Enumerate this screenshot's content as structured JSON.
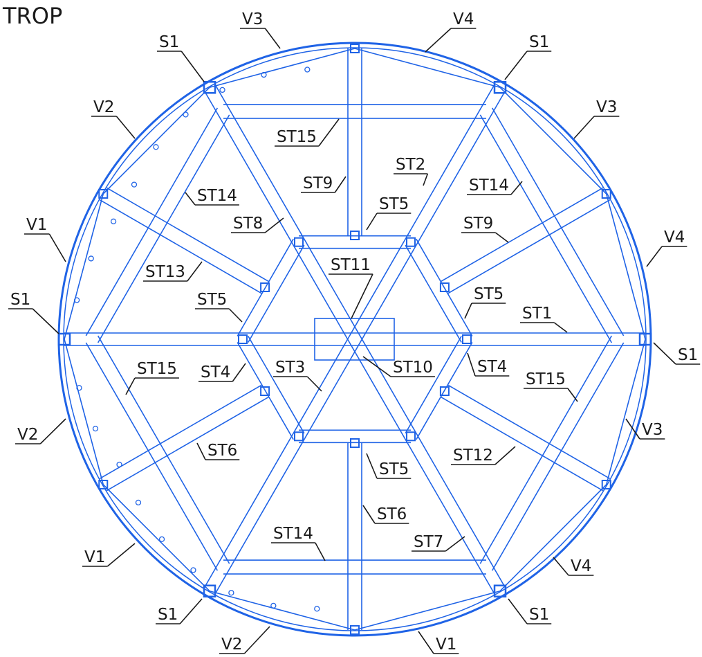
{
  "title": "TROP",
  "labels": [
    "V3",
    "V4",
    "S1",
    "S1",
    "V2",
    "V3",
    "ST15",
    "ST2",
    "ST9",
    "ST14",
    "ST14",
    "V1",
    "V4",
    "ST5",
    "ST8",
    "ST9",
    "ST11",
    "ST13",
    "ST5",
    "ST5",
    "ST1",
    "S1",
    "S1",
    "ST15",
    "ST4",
    "ST3",
    "ST10",
    "ST4",
    "ST15",
    "V2",
    "V3",
    "ST6",
    "ST12",
    "ST5",
    "ST6",
    "ST14",
    "ST7",
    "V1",
    "V4",
    "S1",
    "S1",
    "V2",
    "V1"
  ]
}
